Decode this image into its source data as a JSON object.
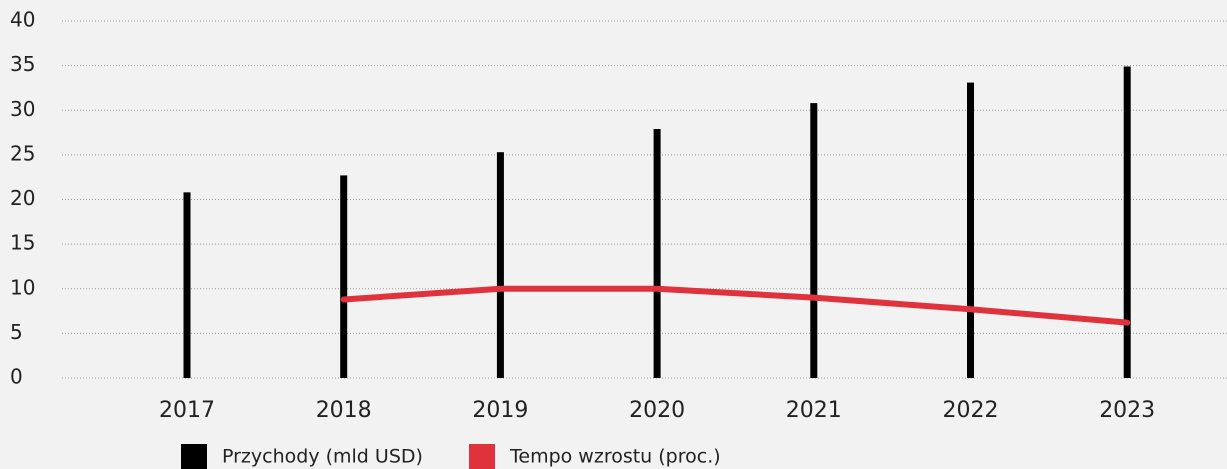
{
  "chart_data": {
    "type": "bar",
    "categories": [
      "2017",
      "2018",
      "2019",
      "2020",
      "2021",
      "2022",
      "2023"
    ],
    "series": [
      {
        "name": "Przychody (mld USD)",
        "color": "#000000",
        "type": "bar",
        "values": [
          20.8,
          22.7,
          25.3,
          27.9,
          30.8,
          33.1,
          34.9
        ]
      },
      {
        "name": "Tempo wzrostu (proc.)",
        "color": "#e0323c",
        "type": "line",
        "values": [
          null,
          8.8,
          10.0,
          10.0,
          9.0,
          7.7,
          6.2
        ]
      }
    ],
    "ylim": [
      0,
      40
    ],
    "yticks": [
      0,
      5,
      10,
      15,
      20,
      25,
      30,
      35,
      40
    ],
    "grid": true,
    "legend": "bottom"
  }
}
